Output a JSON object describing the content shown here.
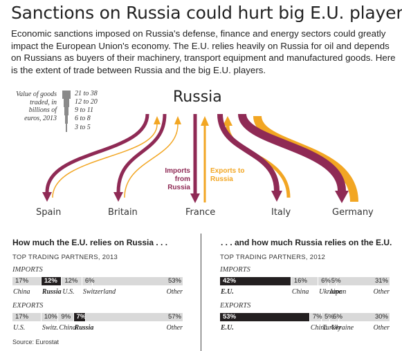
{
  "headline": "Sanctions on Russia could hurt big E.U. players",
  "dek": "Economic sanctions imposed on Russia's defense, finance and energy sectors could greatly impact the European Union's economy. The E.U. relies heavily on Russia for oil and depends on Russians as buyers of their machinery, transport equipment and manufactured goods. Here is the extent of trade between Russia and the big E.U. players.",
  "colors": {
    "imports": "#8f2a55",
    "exports": "#f2a623",
    "dark_bar": "#231f20",
    "light_bar": "#d9d9d9"
  },
  "flow": {
    "legend": {
      "caption": "Value of goods traded, in billions of euros, 2013",
      "ranges": [
        "21 to 38",
        "12 to 20",
        "9 to 11",
        "6 to 8",
        "3 to 5"
      ]
    },
    "origin": "Russia",
    "imports_note": "Imports from Russia",
    "exports_note": "Exports to Russia",
    "countries": [
      {
        "name": "Spain",
        "imports_bucket": "9 to 11",
        "exports_bucket": "3 to 5"
      },
      {
        "name": "Britain",
        "imports_bucket": "9 to 11",
        "exports_bucket": "3 to 5"
      },
      {
        "name": "France",
        "imports_bucket": "9 to 11",
        "exports_bucket": "6 to 8"
      },
      {
        "name": "Italy",
        "imports_bucket": "12 to 20",
        "exports_bucket": "9 to 11"
      },
      {
        "name": "Germany",
        "imports_bucket": "21 to 38",
        "exports_bucket": "21 to 38"
      }
    ]
  },
  "eu_panel": {
    "title": "How much the E.U. relies on Russia . . .",
    "subtitle": "TOP TRADING PARTNERS, 2013",
    "sections": [
      {
        "label": "IMPORTS",
        "segments": [
          {
            "partner": "China",
            "pct": 17,
            "text": "17%"
          },
          {
            "partner": "Russia",
            "pct": 12,
            "text": "12%",
            "highlight": true
          },
          {
            "partner": "U.S.",
            "pct": 12,
            "text": "12%"
          },
          {
            "partner": "Switzerland",
            "pct": 6,
            "text": "6%"
          },
          {
            "partner": "Other",
            "pct": 53,
            "text": "53%"
          }
        ]
      },
      {
        "label": "EXPORTS",
        "segments": [
          {
            "partner": "U.S.",
            "pct": 17,
            "text": "17%"
          },
          {
            "partner": "Switz.",
            "pct": 10,
            "text": "10%"
          },
          {
            "partner": "China",
            "pct": 9,
            "text": "9%"
          },
          {
            "partner": "Russia",
            "pct": 7,
            "text": "7%",
            "highlight": true
          },
          {
            "partner": "Other",
            "pct": 57,
            "text": "57%"
          }
        ]
      }
    ]
  },
  "russia_panel": {
    "title": ". . . and how much Russia relies on the E.U.",
    "subtitle": "TOP TRADING PARTNERS, 2012",
    "sections": [
      {
        "label": "IMPORTS",
        "segments": [
          {
            "partner": "E.U.",
            "pct": 42,
            "text": "42%",
            "highlight": true
          },
          {
            "partner": "China",
            "pct": 16,
            "text": "16%"
          },
          {
            "partner": "Ukraine",
            "pct": 6,
            "text": "6%"
          },
          {
            "partner": "Japan",
            "pct": 5,
            "text": "5%"
          },
          {
            "partner": "Other",
            "pct": 31,
            "text": "31%"
          }
        ]
      },
      {
        "label": "EXPORTS",
        "segments": [
          {
            "partner": "E.U.",
            "pct": 53,
            "text": "53%",
            "highlight": true
          },
          {
            "partner": "China",
            "pct": 7,
            "text": "7%"
          },
          {
            "partner": "Turkey",
            "pct": 5,
            "text": "5%"
          },
          {
            "partner": "Ukraine",
            "pct": 5,
            "text": "5%"
          },
          {
            "partner": "Other",
            "pct": 30,
            "text": "30%"
          }
        ]
      }
    ]
  },
  "source": "Source: Eurostat"
}
